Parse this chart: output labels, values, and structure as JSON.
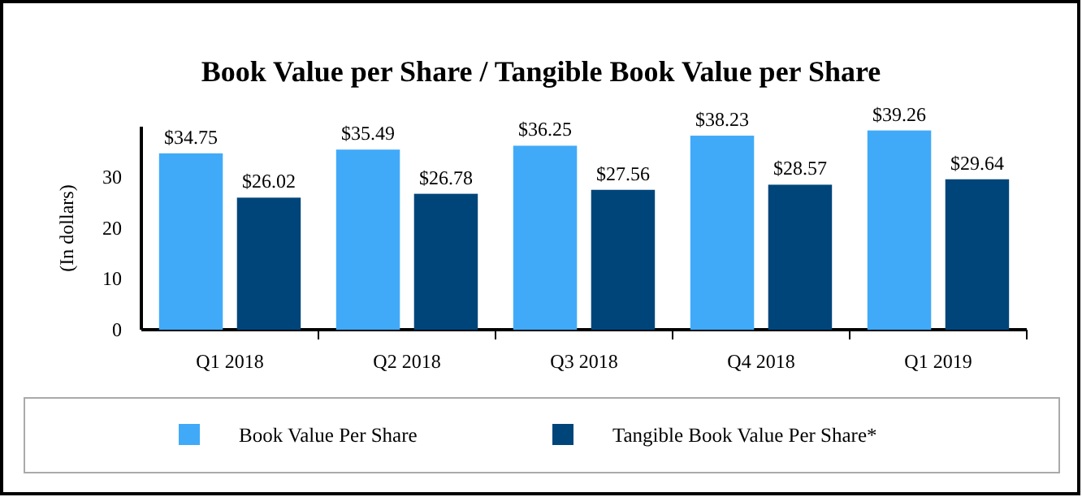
{
  "chart_data": {
    "type": "bar",
    "title": "Book Value per Share / Tangible Book Value per Share",
    "ylabel": "(In dollars)",
    "categories": [
      "Q1 2018",
      "Q2 2018",
      "Q3 2018",
      "Q4 2018",
      "Q1 2019"
    ],
    "series": [
      {
        "name": "Book Value Per Share",
        "color": "#41aaf8",
        "values": [
          34.75,
          35.49,
          36.25,
          38.23,
          39.26
        ],
        "value_labels": [
          "$34.75",
          "$35.49",
          "$36.25",
          "$38.23",
          "$39.26"
        ]
      },
      {
        "name": "Tangible Book Value Per Share*",
        "color": "#00457a",
        "values": [
          26.02,
          26.78,
          27.56,
          28.57,
          29.64
        ],
        "value_labels": [
          "$26.02",
          "$26.78",
          "$27.56",
          "$28.57",
          "$29.64"
        ]
      }
    ],
    "ylim": [
      0,
      40
    ],
    "yticks": [
      0,
      10,
      20,
      30
    ],
    "grid": false,
    "legend": "bottom"
  }
}
